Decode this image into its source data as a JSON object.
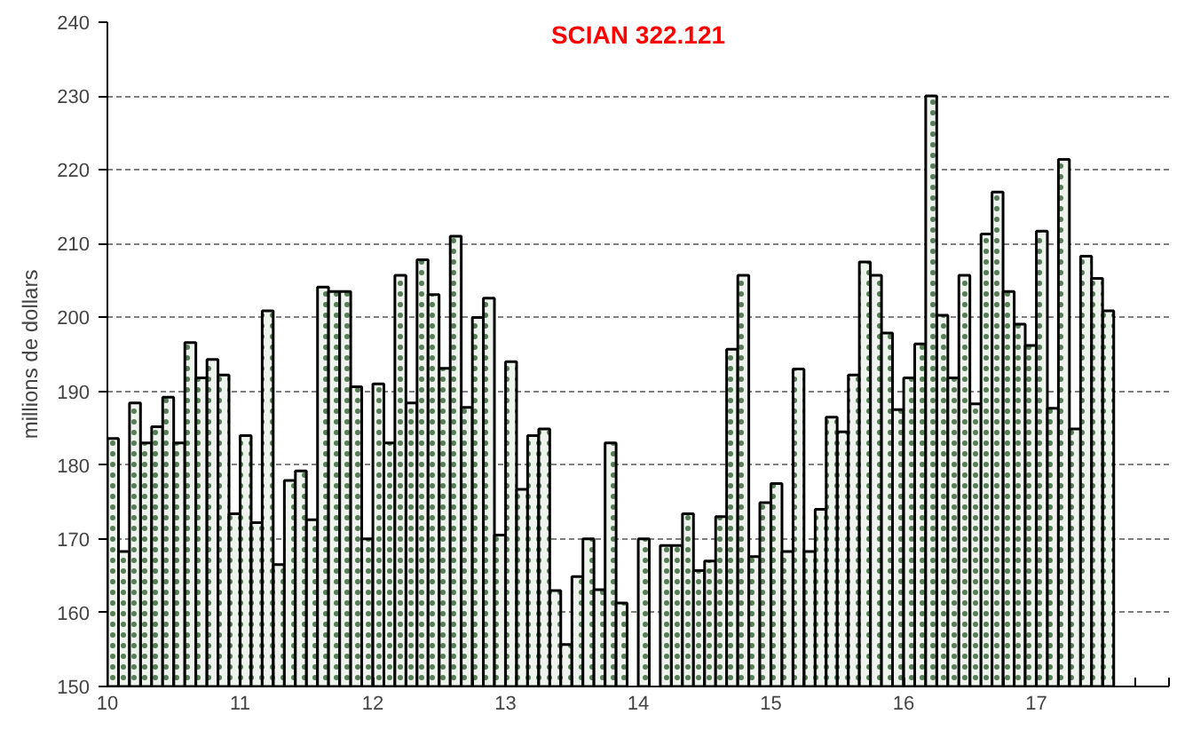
{
  "chart_data": {
    "type": "bar",
    "title": "SCIAN 322.121",
    "ylabel": "millions de dollars",
    "x": [
      10.042,
      10.125,
      10.208,
      10.292,
      10.375,
      10.458,
      10.542,
      10.625,
      10.708,
      10.792,
      10.875,
      10.958,
      11.042,
      11.125,
      11.208,
      11.292,
      11.375,
      11.458,
      11.542,
      11.625,
      11.708,
      11.792,
      11.875,
      11.958,
      12.042,
      12.125,
      12.208,
      12.292,
      12.375,
      12.458,
      12.542,
      12.625,
      12.708,
      12.792,
      12.875,
      12.958,
      13.042,
      13.125,
      13.208,
      13.292,
      13.375,
      13.458,
      13.542,
      13.625,
      13.708,
      13.792,
      13.875,
      13.958,
      14.042,
      14.125,
      14.208,
      14.292,
      14.375,
      14.458,
      14.542,
      14.625,
      14.708,
      14.792,
      14.875,
      14.958,
      15.042,
      15.125,
      15.208,
      15.292,
      15.375,
      15.458,
      15.542,
      15.625,
      15.708,
      15.792,
      15.875,
      15.958,
      16.042,
      16.125,
      16.208,
      16.292,
      16.375,
      16.458,
      16.542,
      16.625,
      16.708,
      16.792,
      16.875,
      16.958,
      17.042,
      17.125,
      17.208,
      17.292,
      17.375,
      17.458,
      17.542
    ],
    "series": [
      {
        "color": "#eef3ee",
        "values": [
          183.6,
          168.3,
          188.4,
          183,
          185.2,
          189.2,
          183,
          196.6,
          191.8,
          194.3,
          192.2,
          173.4,
          184,
          172.2,
          200.9,
          166.5,
          177.9,
          179.2,
          172.6,
          204.1,
          203.5,
          203.5,
          190.6,
          170,
          191,
          183,
          205.7,
          188.4,
          207.8,
          203.1,
          193.1,
          211,
          187.8,
          200,
          202.6,
          170.5,
          194,
          176.7,
          184,
          184.9,
          163,
          155.7,
          164.9,
          170,
          163.1,
          183,
          161.3,
          null,
          170,
          null,
          169.1,
          169.1,
          173.4,
          165.7,
          167,
          173,
          195.7,
          205.7,
          167.6,
          174.9,
          177.5,
          168.3,
          193,
          168.3,
          174,
          186.5,
          184.5,
          192.2,
          207.5,
          205.7,
          197.9,
          187.5,
          191.8,
          196.4,
          230,
          200.3,
          191.8,
          205.7,
          188.3,
          211.3,
          217,
          203.5,
          199.1,
          196.2,
          211.7,
          187.7,
          221.4,
          184.9,
          208.3,
          205.3,
          200.9
        ]
      }
    ],
    "xlim": [
      10,
      18
    ],
    "xticks": [
      {
        "value": 10,
        "label": "10"
      },
      {
        "value": 10.25,
        "label": null
      },
      {
        "value": 10.5,
        "label": null
      },
      {
        "value": 10.75,
        "label": null
      },
      {
        "value": 11,
        "label": "11"
      },
      {
        "value": 11.25,
        "label": null
      },
      {
        "value": 11.5,
        "label": null
      },
      {
        "value": 11.75,
        "label": null
      },
      {
        "value": 12,
        "label": "12"
      },
      {
        "value": 12.25,
        "label": null
      },
      {
        "value": 12.5,
        "label": null
      },
      {
        "value": 12.75,
        "label": null
      },
      {
        "value": 13,
        "label": "13"
      },
      {
        "value": 13.25,
        "label": null
      },
      {
        "value": 13.5,
        "label": null
      },
      {
        "value": 13.75,
        "label": null
      },
      {
        "value": 14,
        "label": "14"
      },
      {
        "value": 14.25,
        "label": null
      },
      {
        "value": 14.5,
        "label": null
      },
      {
        "value": 14.75,
        "label": null
      },
      {
        "value": 15,
        "label": "15"
      },
      {
        "value": 15.25,
        "label": null
      },
      {
        "value": 15.5,
        "label": null
      },
      {
        "value": 15.75,
        "label": null
      },
      {
        "value": 16,
        "label": "16"
      },
      {
        "value": 16.25,
        "label": null
      },
      {
        "value": 16.5,
        "label": null
      },
      {
        "value": 16.75,
        "label": null
      },
      {
        "value": 17,
        "label": "17"
      },
      {
        "value": 17.25,
        "label": null
      },
      {
        "value": 17.5,
        "label": null
      },
      {
        "value": 17.75,
        "label": null
      },
      {
        "value": 18,
        "label": null
      }
    ],
    "ylim": [
      150,
      240
    ],
    "yticks": [
      150,
      160,
      170,
      180,
      190,
      200,
      210,
      220,
      230,
      240
    ],
    "grid": "y"
  }
}
